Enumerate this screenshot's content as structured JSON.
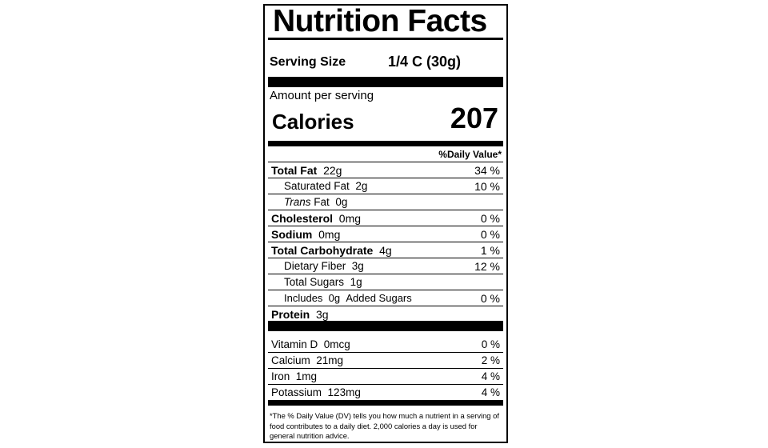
{
  "title": "Nutrition Facts",
  "serving": {
    "label": "Serving Size",
    "value": "1/4 C (30g)"
  },
  "amount_per_serving": "Amount per serving",
  "calories": {
    "label": "Calories",
    "value": "207"
  },
  "daily_value_header": "%Daily Value*",
  "nutrients": [
    {
      "name": "Total Fat",
      "amount": "22g",
      "dv": "34 %",
      "style": "main"
    },
    {
      "name": "Saturated Fat",
      "amount": "2g",
      "dv": "10 %",
      "style": "sub"
    },
    {
      "name_italic": "Trans",
      "name": "Fat",
      "amount": "0g",
      "style": "sub"
    },
    {
      "name": "Cholesterol",
      "amount": "0mg",
      "dv": "0 %",
      "style": "main"
    },
    {
      "name": "Sodium",
      "amount": "0mg",
      "dv": "0 %",
      "style": "main"
    },
    {
      "name": "Total Carbohydrate",
      "amount": "4g",
      "dv": "1 %",
      "style": "main"
    },
    {
      "name": "Dietary Fiber",
      "amount": "3g",
      "dv": "12 %",
      "style": "sub"
    },
    {
      "name": "Total Sugars",
      "amount": "1g",
      "style": "sub"
    },
    {
      "name": "Includes",
      "amount": "0g",
      "suffix": "Added Sugars",
      "dv": "0 %",
      "style": "sub-small"
    },
    {
      "name": "Protein",
      "amount": "3g",
      "style": "main"
    }
  ],
  "vitamins": [
    {
      "name": "Vitamin D",
      "amount": "0mcg",
      "dv": "0 %"
    },
    {
      "name": "Calcium",
      "amount": "21mg",
      "dv": "2 %"
    },
    {
      "name": "Iron",
      "amount": "1mg",
      "dv": "4 %"
    },
    {
      "name": "Potassium",
      "amount": "123mg",
      "dv": "4 %"
    }
  ],
  "footnote": "*The % Daily Value (DV) tells you how much a nutrient in a serving of food contributes to a daily diet. 2,000 calories a day is used for general nutrition advice."
}
